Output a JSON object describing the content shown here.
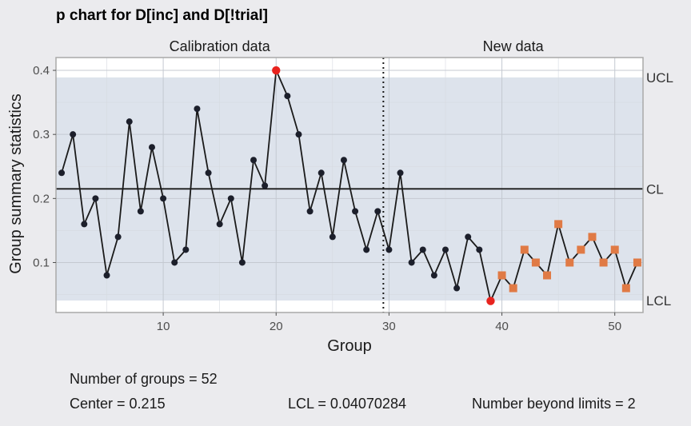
{
  "chart_data": {
    "type": "line",
    "title": "p chart for D[inc] and D[!trial]",
    "xlabel": "Group",
    "ylabel": "Group summary statistics",
    "xlim": [
      0.5,
      52.5
    ],
    "ylim": [
      0.022,
      0.42
    ],
    "xticks": [
      10,
      20,
      30,
      40,
      50
    ],
    "yticks": [
      0.1,
      0.2,
      0.3,
      0.4
    ],
    "sections": [
      {
        "label": "Calibration data",
        "x_from": 1,
        "x_to": 29
      },
      {
        "label": "New data",
        "x_from": 30,
        "x_to": 52
      }
    ],
    "separator_x": 29.5,
    "limits": {
      "UCL": 0.389,
      "CL": 0.215,
      "LCL": 0.0407
    },
    "limit_labels": {
      "UCL": "UCL",
      "CL": "CL",
      "LCL": "LCL"
    },
    "x": [
      1,
      2,
      3,
      4,
      5,
      6,
      7,
      8,
      9,
      10,
      11,
      12,
      13,
      14,
      15,
      16,
      17,
      18,
      19,
      20,
      21,
      22,
      23,
      24,
      25,
      26,
      27,
      28,
      29,
      30,
      31,
      32,
      33,
      34,
      35,
      36,
      37,
      38,
      39,
      40,
      41,
      42,
      43,
      44,
      45,
      46,
      47,
      48,
      49,
      50,
      51,
      52
    ],
    "values": [
      0.24,
      0.3,
      0.16,
      0.2,
      0.08,
      0.14,
      0.32,
      0.18,
      0.28,
      0.2,
      0.1,
      0.12,
      0.34,
      0.24,
      0.16,
      0.2,
      0.1,
      0.26,
      0.22,
      0.4,
      0.36,
      0.3,
      0.18,
      0.24,
      0.14,
      0.26,
      0.18,
      0.12,
      0.18,
      0.12,
      0.24,
      0.1,
      0.12,
      0.08,
      0.12,
      0.06,
      0.14,
      0.12,
      0.04,
      0.08,
      0.06,
      0.12,
      0.1,
      0.08,
      0.16,
      0.1,
      0.12,
      0.14,
      0.1,
      0.12,
      0.06,
      0.1
    ],
    "beyond_limits": [
      20,
      39
    ],
    "violating_runs": [
      40,
      41,
      42,
      43,
      44,
      45,
      46,
      47,
      48,
      49,
      50,
      51,
      52
    ],
    "colors": {
      "point": "#1c1f2b",
      "beyond": "#e8231e",
      "run": "#e07a45",
      "band": "#dde3ec",
      "line": "#1a1a1a"
    }
  },
  "stats": {
    "groups": "Number of groups = 52",
    "center": "Center = 0.215",
    "lcl": "LCL = 0.04070284",
    "beyond": "Number beyond limits = 2"
  }
}
